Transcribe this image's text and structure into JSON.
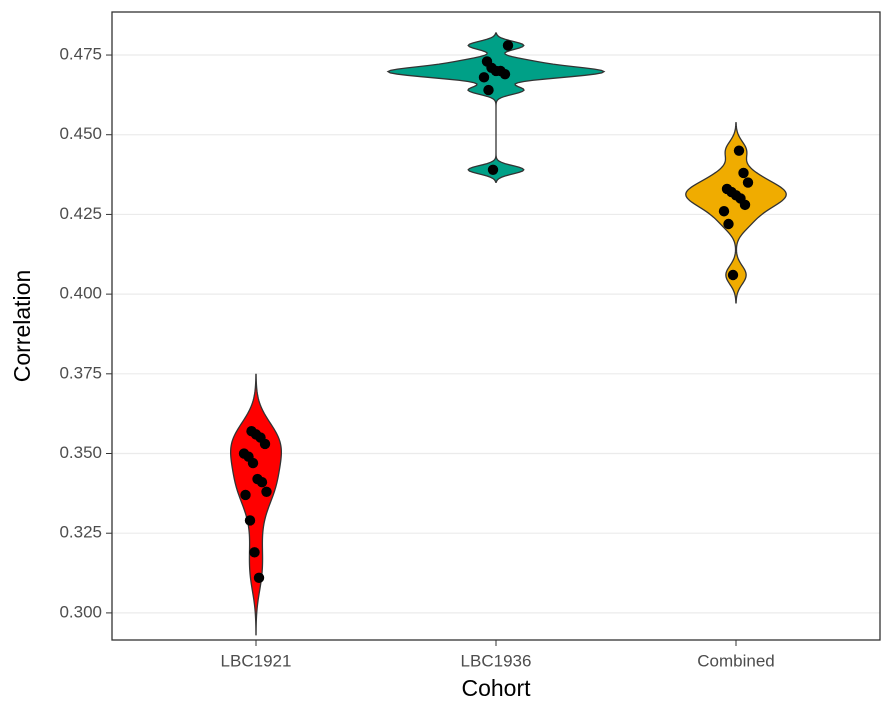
{
  "chart_data": {
    "type": "violin",
    "x_label": "Cohort",
    "y_label": "Correlation",
    "categories": [
      "LBC1921",
      "LBC1936",
      "Combined"
    ],
    "series": [
      {
        "color": "#ff0000",
        "values": [
          0.357,
          0.356,
          0.355,
          0.353,
          0.35,
          0.349,
          0.347,
          0.342,
          0.341,
          0.338,
          0.337,
          0.329,
          0.319,
          0.311
        ]
      },
      {
        "color": "#00a087",
        "values": [
          0.478,
          0.473,
          0.471,
          0.47,
          0.47,
          0.469,
          0.468,
          0.464,
          0.439
        ]
      },
      {
        "color": "#f0ac00",
        "values": [
          0.445,
          0.438,
          0.435,
          0.433,
          0.432,
          0.431,
          0.43,
          0.428,
          0.426,
          0.422,
          0.406
        ]
      }
    ],
    "point_color": "#000000",
    "ylim": [
      0.2915,
      0.4885
    ],
    "yticks": [
      {
        "value": 0.3,
        "label": "0.300"
      },
      0.325,
      {
        "value": 0.35,
        "label": "0.350"
      },
      0.375,
      {
        "value": 0.4,
        "label": "0.400"
      },
      0.425,
      {
        "value": 0.45,
        "label": "0.450"
      },
      0.475
    ],
    "grid": true
  }
}
